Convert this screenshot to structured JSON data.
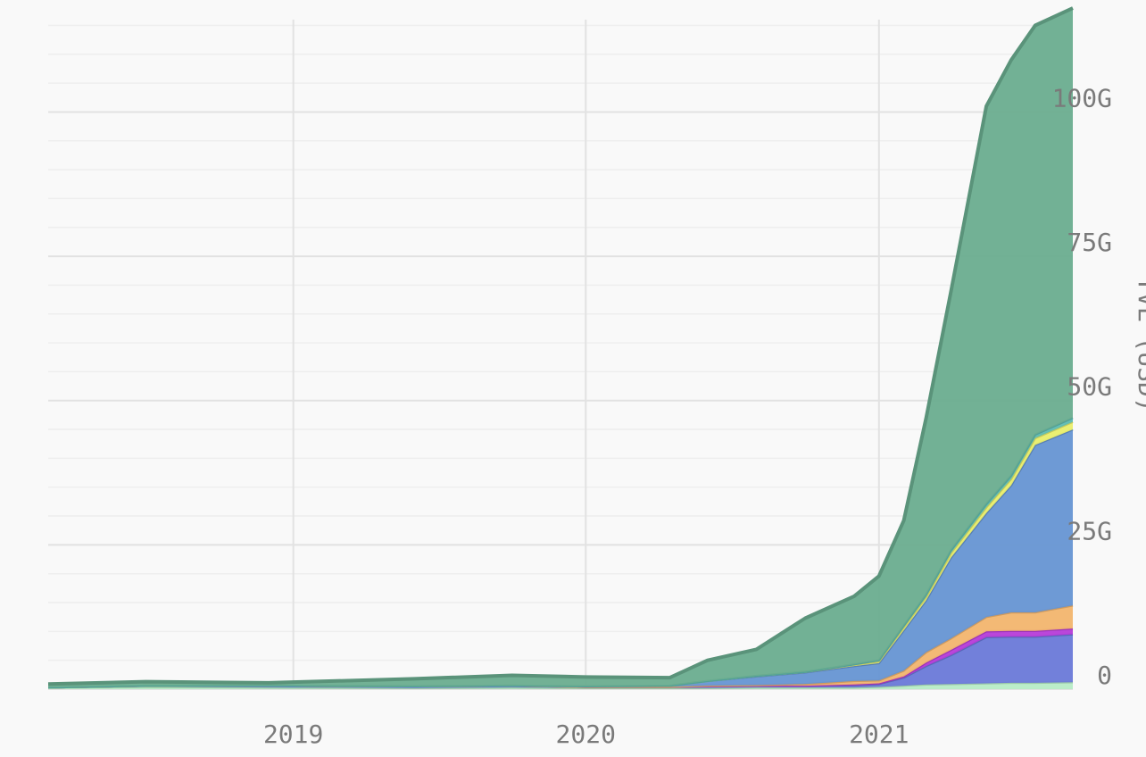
{
  "chart_data": {
    "type": "area",
    "stacked": true,
    "title": "",
    "xlabel": "",
    "ylabel": "TVL (USD)",
    "x_ticks": [
      "2019",
      "2020",
      "2021"
    ],
    "y_ticks": [
      "0",
      "25G",
      "50G",
      "75G",
      "100G"
    ],
    "y_tick_values": [
      0,
      25,
      50,
      75,
      100
    ],
    "y_unit": "G USD",
    "xlim": [
      "2018-03-01",
      "2021-08-31"
    ],
    "ylim": [
      0,
      116
    ],
    "grid": true,
    "legend": "none",
    "x": [
      "2018-03-01",
      "2018-07-01",
      "2018-12-01",
      "2019-06-01",
      "2019-10-01",
      "2020-01-01",
      "2020-04-15",
      "2020-06-01",
      "2020-08-01",
      "2020-10-01",
      "2020-12-01",
      "2021-01-01",
      "2021-02-01",
      "2021-03-01",
      "2021-04-01",
      "2021-05-15",
      "2021-06-15",
      "2021-07-15",
      "2021-08-31"
    ],
    "series": [
      {
        "color": "#b7ecc6",
        "values": [
          0.3,
          0.4,
          0.3,
          0.2,
          0.3,
          0.2,
          0.2,
          0.2,
          0.3,
          0.3,
          0.3,
          0.4,
          0.6,
          0.8,
          0.9,
          1.0,
          1.1,
          1.1,
          1.2
        ]
      },
      {
        "color": "#6a79d8",
        "values": [
          0,
          0.2,
          0.3,
          0.3,
          0.3,
          0.2,
          0.2,
          0.3,
          0.3,
          0.3,
          0.4,
          0.5,
          1.4,
          3.2,
          5.0,
          8.0,
          8.0,
          8.0,
          8.3
        ]
      },
      {
        "color": "#b63cd8",
        "values": [
          0,
          0,
          0,
          0,
          0,
          0,
          0,
          0,
          0,
          0,
          0.1,
          0.1,
          0.2,
          0.6,
          0.9,
          1.0,
          1.0,
          1.0,
          1.0
        ]
      },
      {
        "color": "#f2b56e",
        "values": [
          0,
          0,
          0,
          0,
          0,
          0,
          0,
          0.1,
          0.1,
          0.3,
          0.6,
          0.5,
          1.0,
          1.8,
          2.0,
          2.5,
          3.2,
          3.2,
          4.0
        ]
      },
      {
        "color": "#6695d3",
        "values": [
          0,
          0,
          0,
          0,
          0,
          0.1,
          0.2,
          0.8,
          1.5,
          2.0,
          2.6,
          3.0,
          7.0,
          9.0,
          14.0,
          18.0,
          22.0,
          29.0,
          30.5
        ]
      },
      {
        "color": "#e9ee6a",
        "values": [
          0,
          0,
          0,
          0,
          0,
          0,
          0,
          0,
          0.1,
          0.1,
          0.2,
          0.3,
          0.5,
          0.6,
          0.8,
          1.0,
          1.1,
          1.2,
          1.3
        ]
      },
      {
        "color": "#5fbcb3",
        "values": [
          0,
          0,
          0,
          0,
          0,
          0,
          0,
          0,
          0,
          0,
          0.1,
          0.2,
          0.3,
          0.4,
          0.5,
          0.6,
          0.6,
          0.6,
          0.7
        ]
      },
      {
        "color": "#6aad8f",
        "values": [
          0.6,
          0.7,
          0.5,
          1.3,
          1.8,
          1.6,
          1.4,
          3.6,
          4.6,
          9.3,
          11.8,
          14.6,
          18.2,
          30.6,
          44.9,
          68.9,
          72.0,
          70.9,
          71.0
        ]
      }
    ]
  }
}
